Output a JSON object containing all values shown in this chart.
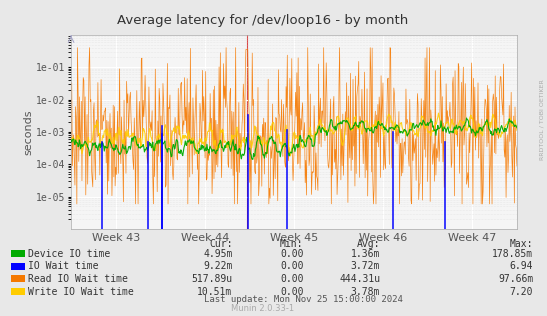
{
  "title": "Average latency for /dev/loop16 - by month",
  "ylabel": "seconds",
  "background_color": "#e8e8e8",
  "plot_background_color": "#f5f5f5",
  "grid_major_color": "#ffffff",
  "grid_minor_color": "#dddddd",
  "border_color": "#aaaaaa",
  "x_tick_labels": [
    "Week 43",
    "Week 44",
    "Week 45",
    "Week 46",
    "Week 47"
  ],
  "ylim_min": 1e-06,
  "ylim_max": 1.0,
  "yticks": [
    1e-05,
    0.0001,
    0.001,
    0.01,
    0.1
  ],
  "ytick_labels": [
    "1e-05",
    "1e-04",
    "1e-03",
    "1e-02",
    "1e-01"
  ],
  "series": [
    {
      "label": "Device IO time",
      "color": "#00aa00"
    },
    {
      "label": "IO Wait time",
      "color": "#0000ff"
    },
    {
      "label": "Read IO Wait time",
      "color": "#f57900"
    },
    {
      "label": "Write IO Wait time",
      "color": "#ffcc00"
    }
  ],
  "legend_headers": [
    "Cur:",
    "Min:",
    "Avg:",
    "Max:"
  ],
  "legend_rows": [
    [
      "4.95m",
      "0.00",
      "1.36m",
      "178.85m"
    ],
    [
      "9.22m",
      "0.00",
      "3.72m",
      "6.94"
    ],
    [
      "517.89u",
      "0.00",
      "444.31u",
      "97.66m"
    ],
    [
      "10.51m",
      "0.00",
      "3.78m",
      "7.20"
    ]
  ],
  "last_update": "Last update: Mon Nov 25 15:00:00 2024",
  "watermark": "Munin 2.0.33-1",
  "side_label": "RRDTOOL / TOBI OETIKER",
  "n_points": 700,
  "red_vline_x": 0.395
}
